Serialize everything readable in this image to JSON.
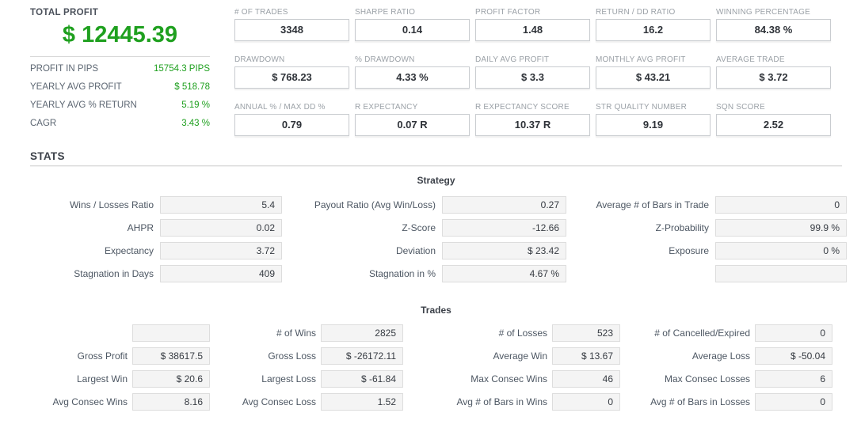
{
  "accent_green": "#1fa01f",
  "summary": {
    "total_profit_label": "TOTAL PROFIT",
    "total_profit_value": "$ 12445.39",
    "rows": [
      {
        "label": "PROFIT IN PIPS",
        "value": "15754.3 PIPS"
      },
      {
        "label": "YEARLY AVG PROFIT",
        "value": "$ 518.78"
      },
      {
        "label": "YEARLY AVG % RETURN",
        "value": "5.19 %"
      },
      {
        "label": "CAGR",
        "value": "3.43 %"
      }
    ]
  },
  "metrics": [
    {
      "label": "# OF TRADES",
      "value": "3348"
    },
    {
      "label": "SHARPE RATIO",
      "value": "0.14"
    },
    {
      "label": "PROFIT FACTOR",
      "value": "1.48"
    },
    {
      "label": "RETURN / DD RATIO",
      "value": "16.2"
    },
    {
      "label": "WINNING PERCENTAGE",
      "value": "84.38 %"
    },
    {
      "label": "DRAWDOWN",
      "value": "$ 768.23"
    },
    {
      "label": "% DRAWDOWN",
      "value": "4.33 %"
    },
    {
      "label": "DAILY AVG PROFIT",
      "value": "$ 3.3"
    },
    {
      "label": "MONTHLY AVG PROFIT",
      "value": "$ 43.21"
    },
    {
      "label": "AVERAGE TRADE",
      "value": "$ 3.72"
    },
    {
      "label": "ANNUAL % / MAX DD %",
      "value": "0.79"
    },
    {
      "label": "R EXPECTANCY",
      "value": "0.07 R"
    },
    {
      "label": "R EXPECTANCY SCORE",
      "value": "10.37 R"
    },
    {
      "label": "STR QUALITY NUMBER",
      "value": "9.19"
    },
    {
      "label": "SQN SCORE",
      "value": "2.52"
    }
  ],
  "stats": {
    "heading": "STATS",
    "strategy": {
      "title": "Strategy",
      "rows": [
        [
          {
            "label": "Wins / Losses Ratio",
            "value": "5.4"
          },
          {
            "label": "Payout Ratio (Avg Win/Loss)",
            "value": "0.27"
          },
          {
            "label": "Average # of Bars in Trade",
            "value": "0"
          }
        ],
        [
          {
            "label": "AHPR",
            "value": "0.02"
          },
          {
            "label": "Z-Score",
            "value": "-12.66"
          },
          {
            "label": "Z-Probability",
            "value": "99.9 %"
          }
        ],
        [
          {
            "label": "Expectancy",
            "value": "3.72"
          },
          {
            "label": "Deviation",
            "value": "$ 23.42"
          },
          {
            "label": "Exposure",
            "value": "0 %"
          }
        ],
        [
          {
            "label": "Stagnation in Days",
            "value": "409"
          },
          {
            "label": "Stagnation in %",
            "value": "4.67 %"
          },
          {
            "label": "",
            "value": ""
          }
        ]
      ]
    },
    "trades": {
      "title": "Trades",
      "rows": [
        [
          {
            "label": "",
            "value": ""
          },
          {
            "label": "# of Wins",
            "value": "2825"
          },
          {
            "label": "# of Losses",
            "value": "523"
          },
          {
            "label": "# of Cancelled/Expired",
            "value": "0"
          }
        ],
        [
          {
            "label": "Gross Profit",
            "value": "$ 38617.5"
          },
          {
            "label": "Gross Loss",
            "value": "$ -26172.11"
          },
          {
            "label": "Average Win",
            "value": "$ 13.67"
          },
          {
            "label": "Average Loss",
            "value": "$ -50.04"
          }
        ],
        [
          {
            "label": "Largest Win",
            "value": "$ 20.6"
          },
          {
            "label": "Largest Loss",
            "value": "$ -61.84"
          },
          {
            "label": "Max Consec Wins",
            "value": "46"
          },
          {
            "label": "Max Consec Losses",
            "value": "6"
          }
        ],
        [
          {
            "label": "Avg Consec Wins",
            "value": "8.16"
          },
          {
            "label": "Avg Consec Loss",
            "value": "1.52"
          },
          {
            "label": "Avg # of Bars in Wins",
            "value": "0"
          },
          {
            "label": "Avg # of Bars in Losses",
            "value": "0"
          }
        ]
      ]
    }
  }
}
